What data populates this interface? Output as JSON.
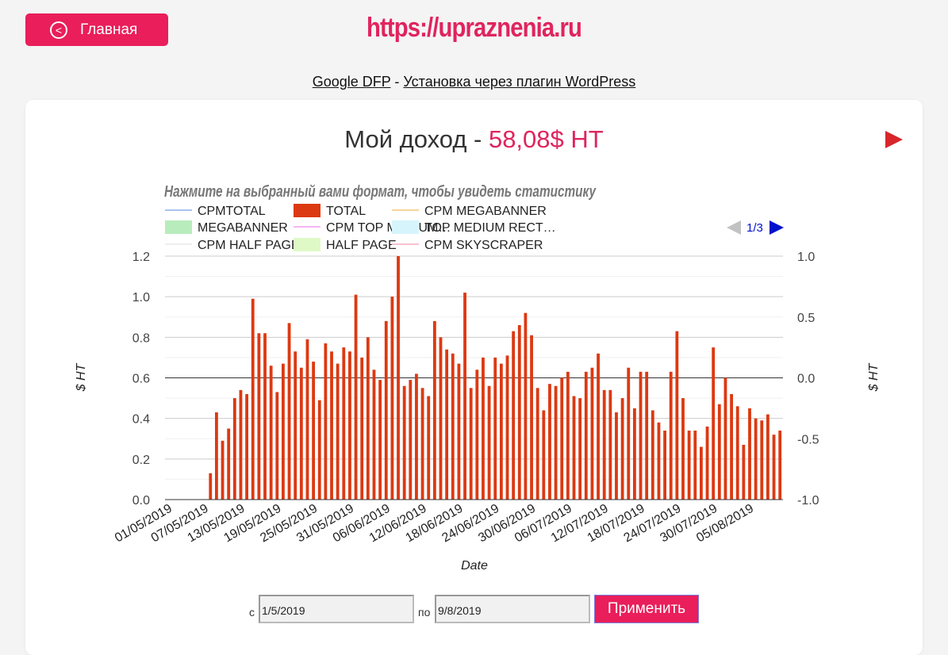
{
  "header": {
    "home_label": "Главная",
    "site_url": "https://upraznenia.ru"
  },
  "links": {
    "link1": "Google DFP",
    "separator": " - ",
    "link2": "Установка через плагин WordPress"
  },
  "card": {
    "title_prefix": "Мой доход - ",
    "title_amount": "58,08$ HT"
  },
  "form": {
    "from_label": "с",
    "from_value": "1/5/2019",
    "to_label": "по",
    "to_value": "9/8/2019",
    "apply_label": "Применить"
  },
  "chart_data": {
    "type": "bar",
    "title": "Нажмите на выбранный вами формат, чтобы увидеть статистику",
    "xlabel": "Date",
    "ylabel": "$ HT",
    "y2label": "$ HT",
    "ylim": [
      0,
      1.2
    ],
    "y2lim": [
      -1.0,
      1.0
    ],
    "yticks": [
      "1.2",
      "1.0",
      "0.8",
      "0.6",
      "0.4",
      "0.2",
      "0.0"
    ],
    "y2ticks": [
      "1.0",
      "0.5",
      "0.0",
      "-0.5",
      "-1.0"
    ],
    "grid": true,
    "legend": {
      "position": "top",
      "page": "1/3",
      "entries": [
        {
          "name": "CPMTOTAL",
          "style": "line",
          "color": "#aac3ee"
        },
        {
          "name": "TOTAL",
          "style": "box",
          "color": "#dc3912"
        },
        {
          "name": "CPM MEGABANNER",
          "style": "line",
          "color": "#f6d49a"
        },
        {
          "name": "MEGABANNER",
          "style": "box",
          "color": "#b8ecbc"
        },
        {
          "name": "CPM TOP MEDIUM…",
          "style": "line",
          "color": "#f5b6f5"
        },
        {
          "name": "TOP MEDIUM RECT…",
          "style": "box",
          "color": "#d6f4fb"
        },
        {
          "name": "CPM HALF PAGE",
          "style": "line",
          "color": "#eeeeee"
        },
        {
          "name": "HALF PAGE",
          "style": "box",
          "color": "#def9c6"
        },
        {
          "name": "CPM SKYSCRAPER",
          "style": "line",
          "color": "#f7c2d0"
        }
      ]
    },
    "x_tick_labels": [
      "01/05/2019",
      "07/05/2019",
      "13/05/2019",
      "19/05/2019",
      "25/05/2019",
      "31/05/2019",
      "06/06/2019",
      "12/06/2019",
      "18/06/2019",
      "24/06/2019",
      "30/06/2019",
      "06/07/2019",
      "12/07/2019",
      "18/07/2019",
      "24/07/2019",
      "30/07/2019",
      "05/08/2019"
    ],
    "x_start": "2019-05-01",
    "x_end": "2019-08-09",
    "series": [
      {
        "name": "TOTAL",
        "color": "#dc3912",
        "values": [
          0,
          0,
          0,
          0,
          0,
          0,
          0,
          0.13,
          0.43,
          0.29,
          0.35,
          0.5,
          0.54,
          0.52,
          0.99,
          0.82,
          0.82,
          0.66,
          0.53,
          0.67,
          0.87,
          0.73,
          0.65,
          0.79,
          0.68,
          0.49,
          0.77,
          0.73,
          0.67,
          0.75,
          0.73,
          1.01,
          0.7,
          0.8,
          0.64,
          0.59,
          0.88,
          1.0,
          1.2,
          0.56,
          0.59,
          0.62,
          0.55,
          0.51,
          0.88,
          0.8,
          0.74,
          0.72,
          0.67,
          1.02,
          0.55,
          0.64,
          0.7,
          0.56,
          0.7,
          0.67,
          0.71,
          0.83,
          0.86,
          0.92,
          0.81,
          0.55,
          0.44,
          0.57,
          0.56,
          0.6,
          0.63,
          0.51,
          0.5,
          0.63,
          0.65,
          0.72,
          0.54,
          0.54,
          0.43,
          0.5,
          0.65,
          0.45,
          0.63,
          0.63,
          0.44,
          0.38,
          0.34,
          0.63,
          0.83,
          0.5,
          0.34,
          0.34,
          0.26,
          0.36,
          0.75,
          0.47,
          0.6,
          0.52,
          0.46,
          0.27,
          0.45,
          0.4,
          0.39,
          0.42,
          0.32,
          0.34
        ]
      }
    ]
  }
}
